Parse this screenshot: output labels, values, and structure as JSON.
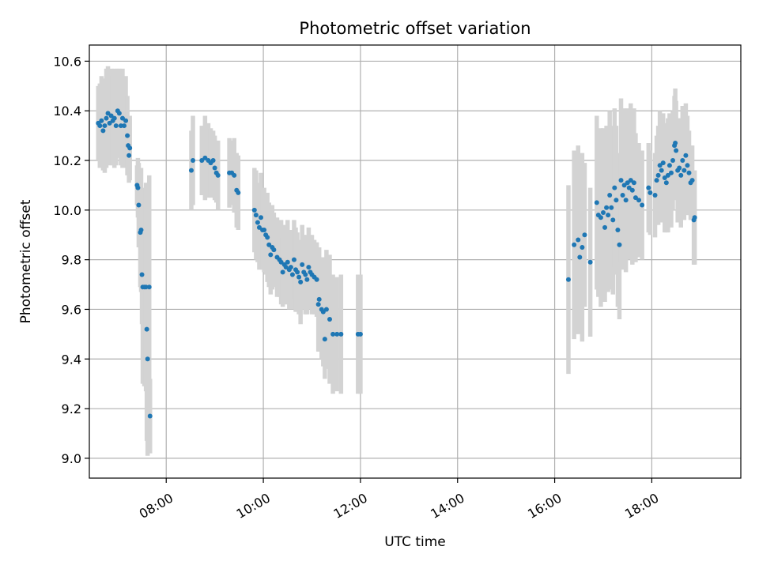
{
  "chart_data": {
    "type": "scatter",
    "title": "Photometric offset variation",
    "xlabel": "UTC time",
    "ylabel": "Photometric offset",
    "xlim": [
      "06:25",
      "19:50"
    ],
    "ylim": [
      8.92,
      10.665
    ],
    "x_ticks": [
      "08:00",
      "10:00",
      "12:00",
      "14:00",
      "16:00",
      "18:00"
    ],
    "y_ticks": [
      "9.0",
      "9.2",
      "9.4",
      "9.6",
      "9.8",
      "10.0",
      "10.2",
      "10.4",
      "10.6"
    ],
    "grid": true,
    "colors": {
      "points": "#1f77b4",
      "error_bars": "#d3d3d3",
      "grid": "#b0b0b0"
    },
    "series": [
      {
        "points": [
          {
            "x": "06:36",
            "y": 10.35,
            "err": 0.15
          },
          {
            "x": "06:38",
            "y": 10.34,
            "err": 0.17
          },
          {
            "x": "06:40",
            "y": 10.36,
            "err": 0.18
          },
          {
            "x": "06:42",
            "y": 10.32,
            "err": 0.16
          },
          {
            "x": "06:44",
            "y": 10.34,
            "err": 0.19
          },
          {
            "x": "06:46",
            "y": 10.37,
            "err": 0.2
          },
          {
            "x": "06:48",
            "y": 10.39,
            "err": 0.19
          },
          {
            "x": "06:50",
            "y": 10.35,
            "err": 0.17
          },
          {
            "x": "06:52",
            "y": 10.38,
            "err": 0.19
          },
          {
            "x": "06:54",
            "y": 10.36,
            "err": 0.18
          },
          {
            "x": "06:56",
            "y": 10.37,
            "err": 0.2
          },
          {
            "x": "06:58",
            "y": 10.34,
            "err": 0.16
          },
          {
            "x": "07:00",
            "y": 10.4,
            "err": 0.17
          },
          {
            "x": "07:02",
            "y": 10.39,
            "err": 0.18
          },
          {
            "x": "07:04",
            "y": 10.34,
            "err": 0.16
          },
          {
            "x": "07:06",
            "y": 10.37,
            "err": 0.2
          },
          {
            "x": "07:08",
            "y": 10.34,
            "err": 0.17
          },
          {
            "x": "07:10",
            "y": 10.36,
            "err": 0.18
          },
          {
            "x": "07:12",
            "y": 10.3,
            "err": 0.16
          },
          {
            "x": "07:13",
            "y": 10.26,
            "err": 0.12
          },
          {
            "x": "07:14",
            "y": 10.22,
            "err": 0.11
          },
          {
            "x": "07:15",
            "y": 10.25,
            "err": 0.13
          },
          {
            "x": "07:24",
            "y": 10.1,
            "err": 0.08
          },
          {
            "x": "07:25",
            "y": 10.09,
            "err": 0.12
          },
          {
            "x": "07:26",
            "y": 10.02,
            "err": 0.17
          },
          {
            "x": "07:28",
            "y": 9.91,
            "err": 0.22
          },
          {
            "x": "07:29",
            "y": 9.92,
            "err": 0.25
          },
          {
            "x": "07:30",
            "y": 9.74,
            "err": 0.2
          },
          {
            "x": "07:31",
            "y": 9.69,
            "err": 0.39
          },
          {
            "x": "07:33",
            "y": 9.69,
            "err": 0.4
          },
          {
            "x": "07:35",
            "y": 9.69,
            "err": 0.42
          },
          {
            "x": "07:36",
            "y": 9.52,
            "err": 0.45
          },
          {
            "x": "07:37",
            "y": 9.4,
            "err": 0.39
          },
          {
            "x": "07:39",
            "y": 9.69,
            "err": 0.45
          },
          {
            "x": "07:40",
            "y": 9.17,
            "err": 0.15
          },
          {
            "x": "08:31",
            "y": 10.16,
            "err": 0.16
          },
          {
            "x": "08:33",
            "y": 10.2,
            "err": 0.18
          },
          {
            "x": "08:44",
            "y": 10.2,
            "err": 0.14
          },
          {
            "x": "08:48",
            "y": 10.21,
            "err": 0.17
          },
          {
            "x": "08:52",
            "y": 10.2,
            "err": 0.15
          },
          {
            "x": "08:55",
            "y": 10.19,
            "err": 0.14
          },
          {
            "x": "08:58",
            "y": 10.2,
            "err": 0.12
          },
          {
            "x": "09:00",
            "y": 10.17,
            "err": 0.13
          },
          {
            "x": "09:02",
            "y": 10.15,
            "err": 0.12
          },
          {
            "x": "09:04",
            "y": 10.14,
            "err": 0.14
          },
          {
            "x": "09:18",
            "y": 10.15,
            "err": 0.14
          },
          {
            "x": "09:21",
            "y": 10.15,
            "err": 0.13
          },
          {
            "x": "09:24",
            "y": 10.14,
            "err": 0.15
          },
          {
            "x": "09:27",
            "y": 10.08,
            "err": 0.15
          },
          {
            "x": "09:29",
            "y": 10.07,
            "err": 0.15
          },
          {
            "x": "09:49",
            "y": 10.0,
            "err": 0.17
          },
          {
            "x": "09:51",
            "y": 9.98,
            "err": 0.18
          },
          {
            "x": "09:53",
            "y": 9.95,
            "err": 0.16
          },
          {
            "x": "09:55",
            "y": 9.93,
            "err": 0.17
          },
          {
            "x": "09:57",
            "y": 9.97,
            "err": 0.18
          },
          {
            "x": "09:59",
            "y": 9.92,
            "err": 0.16
          },
          {
            "x": "10:01",
            "y": 9.92,
            "err": 0.17
          },
          {
            "x": "10:03",
            "y": 9.9,
            "err": 0.16
          },
          {
            "x": "10:05",
            "y": 9.89,
            "err": 0.18
          },
          {
            "x": "10:07",
            "y": 9.86,
            "err": 0.17
          },
          {
            "x": "10:09",
            "y": 9.82,
            "err": 0.16
          },
          {
            "x": "10:11",
            "y": 9.85,
            "err": 0.17
          },
          {
            "x": "10:13",
            "y": 9.84,
            "err": 0.15
          },
          {
            "x": "10:17",
            "y": 9.81,
            "err": 0.16
          },
          {
            "x": "10:20",
            "y": 9.8,
            "err": 0.15
          },
          {
            "x": "10:22",
            "y": 9.79,
            "err": 0.17
          },
          {
            "x": "10:24",
            "y": 9.75,
            "err": 0.14
          },
          {
            "x": "10:26",
            "y": 9.78,
            "err": 0.16
          },
          {
            "x": "10:28",
            "y": 9.77,
            "err": 0.15
          },
          {
            "x": "10:30",
            "y": 9.79,
            "err": 0.17
          },
          {
            "x": "10:32",
            "y": 9.76,
            "err": 0.16
          },
          {
            "x": "10:34",
            "y": 9.77,
            "err": 0.15
          },
          {
            "x": "10:36",
            "y": 9.74,
            "err": 0.14
          },
          {
            "x": "10:38",
            "y": 9.8,
            "err": 0.16
          },
          {
            "x": "10:40",
            "y": 9.76,
            "err": 0.17
          },
          {
            "x": "10:42",
            "y": 9.75,
            "err": 0.16
          },
          {
            "x": "10:44",
            "y": 9.73,
            "err": 0.15
          },
          {
            "x": "10:46",
            "y": 9.71,
            "err": 0.17
          },
          {
            "x": "10:48",
            "y": 9.78,
            "err": 0.16
          },
          {
            "x": "10:50",
            "y": 9.75,
            "err": 0.15
          },
          {
            "x": "10:52",
            "y": 9.74,
            "err": 0.16
          },
          {
            "x": "10:54",
            "y": 9.72,
            "err": 0.14
          },
          {
            "x": "10:56",
            "y": 9.77,
            "err": 0.16
          },
          {
            "x": "10:58",
            "y": 9.75,
            "err": 0.15
          },
          {
            "x": "11:00",
            "y": 9.74,
            "err": 0.16
          },
          {
            "x": "11:03",
            "y": 9.73,
            "err": 0.15
          },
          {
            "x": "11:06",
            "y": 9.72,
            "err": 0.15
          },
          {
            "x": "11:08",
            "y": 9.62,
            "err": 0.19
          },
          {
            "x": "11:09",
            "y": 9.64,
            "err": 0.21
          },
          {
            "x": "11:12",
            "y": 9.6,
            "err": 0.2
          },
          {
            "x": "11:14",
            "y": 9.59,
            "err": 0.22
          },
          {
            "x": "11:16",
            "y": 9.48,
            "err": 0.16
          },
          {
            "x": "11:18",
            "y": 9.6,
            "err": 0.24
          },
          {
            "x": "11:22",
            "y": 9.56,
            "err": 0.26
          },
          {
            "x": "11:26",
            "y": 9.5,
            "err": 0.24
          },
          {
            "x": "11:31",
            "y": 9.5,
            "err": 0.23
          },
          {
            "x": "11:36",
            "y": 9.5,
            "err": 0.24
          },
          {
            "x": "11:57",
            "y": 9.5,
            "err": 0.24
          },
          {
            "x": "12:00",
            "y": 9.5,
            "err": 0.24
          },
          {
            "x": "16:17",
            "y": 9.72,
            "err": 0.38
          },
          {
            "x": "16:24",
            "y": 9.86,
            "err": 0.38
          },
          {
            "x": "16:29",
            "y": 9.88,
            "err": 0.38
          },
          {
            "x": "16:31",
            "y": 9.81,
            "err": 0.3
          },
          {
            "x": "16:34",
            "y": 9.85,
            "err": 0.38
          },
          {
            "x": "16:37",
            "y": 9.9,
            "err": 0.29
          },
          {
            "x": "16:44",
            "y": 9.79,
            "err": 0.3
          },
          {
            "x": "16:52",
            "y": 10.03,
            "err": 0.35
          },
          {
            "x": "16:54",
            "y": 9.98,
            "err": 0.33
          },
          {
            "x": "16:57",
            "y": 9.97,
            "err": 0.36
          },
          {
            "x": "17:00",
            "y": 9.99,
            "err": 0.34
          },
          {
            "x": "17:02",
            "y": 9.93,
            "err": 0.3
          },
          {
            "x": "17:04",
            "y": 10.01,
            "err": 0.33
          },
          {
            "x": "17:06",
            "y": 9.98,
            "err": 0.31
          },
          {
            "x": "17:08",
            "y": 10.06,
            "err": 0.34
          },
          {
            "x": "17:10",
            "y": 10.01,
            "err": 0.33
          },
          {
            "x": "17:12",
            "y": 9.96,
            "err": 0.3
          },
          {
            "x": "17:14",
            "y": 10.09,
            "err": 0.32
          },
          {
            "x": "17:16",
            "y": 10.04,
            "err": 0.3
          },
          {
            "x": "17:18",
            "y": 9.92,
            "err": 0.31
          },
          {
            "x": "17:20",
            "y": 9.86,
            "err": 0.3
          },
          {
            "x": "17:22",
            "y": 10.12,
            "err": 0.33
          },
          {
            "x": "17:24",
            "y": 10.06,
            "err": 0.3
          },
          {
            "x": "17:26",
            "y": 10.1,
            "err": 0.31
          },
          {
            "x": "17:28",
            "y": 10.04,
            "err": 0.29
          },
          {
            "x": "17:30",
            "y": 10.11,
            "err": 0.3
          },
          {
            "x": "17:32",
            "y": 10.09,
            "err": 0.29
          },
          {
            "x": "17:34",
            "y": 10.12,
            "err": 0.31
          },
          {
            "x": "17:36",
            "y": 10.08,
            "err": 0.3
          },
          {
            "x": "17:38",
            "y": 10.11,
            "err": 0.3
          },
          {
            "x": "17:40",
            "y": 10.05,
            "err": 0.26
          },
          {
            "x": "17:44",
            "y": 10.04,
            "err": 0.23
          },
          {
            "x": "17:48",
            "y": 10.02,
            "err": 0.22
          },
          {
            "x": "17:56",
            "y": 10.09,
            "err": 0.18
          },
          {
            "x": "17:58",
            "y": 10.07,
            "err": 0.17
          },
          {
            "x": "18:04",
            "y": 10.06,
            "err": 0.17
          },
          {
            "x": "18:06",
            "y": 10.12,
            "err": 0.18
          },
          {
            "x": "18:08",
            "y": 10.14,
            "err": 0.2
          },
          {
            "x": "18:10",
            "y": 10.18,
            "err": 0.22
          },
          {
            "x": "18:12",
            "y": 10.16,
            "err": 0.21
          },
          {
            "x": "18:14",
            "y": 10.19,
            "err": 0.2
          },
          {
            "x": "18:16",
            "y": 10.13,
            "err": 0.22
          },
          {
            "x": "18:18",
            "y": 10.11,
            "err": 0.2
          },
          {
            "x": "18:20",
            "y": 10.14,
            "err": 0.23
          },
          {
            "x": "18:22",
            "y": 10.18,
            "err": 0.21
          },
          {
            "x": "18:24",
            "y": 10.15,
            "err": 0.22
          },
          {
            "x": "18:26",
            "y": 10.2,
            "err": 0.2
          },
          {
            "x": "18:28",
            "y": 10.26,
            "err": 0.2
          },
          {
            "x": "18:29",
            "y": 10.27,
            "err": 0.22
          },
          {
            "x": "18:30",
            "y": 10.24,
            "err": 0.2
          },
          {
            "x": "18:32",
            "y": 10.16,
            "err": 0.21
          },
          {
            "x": "18:34",
            "y": 10.17,
            "err": 0.2
          },
          {
            "x": "18:36",
            "y": 10.14,
            "err": 0.21
          },
          {
            "x": "18:38",
            "y": 10.2,
            "err": 0.22
          },
          {
            "x": "18:40",
            "y": 10.16,
            "err": 0.2
          },
          {
            "x": "18:42",
            "y": 10.22,
            "err": 0.21
          },
          {
            "x": "18:44",
            "y": 10.18,
            "err": 0.2
          },
          {
            "x": "18:46",
            "y": 10.15,
            "err": 0.17
          },
          {
            "x": "18:48",
            "y": 10.11,
            "err": 0.15
          },
          {
            "x": "18:50",
            "y": 10.12,
            "err": 0.14
          },
          {
            "x": "18:52",
            "y": 9.96,
            "err": 0.18
          },
          {
            "x": "18:53",
            "y": 9.97,
            "err": 0.19
          }
        ]
      }
    ]
  }
}
